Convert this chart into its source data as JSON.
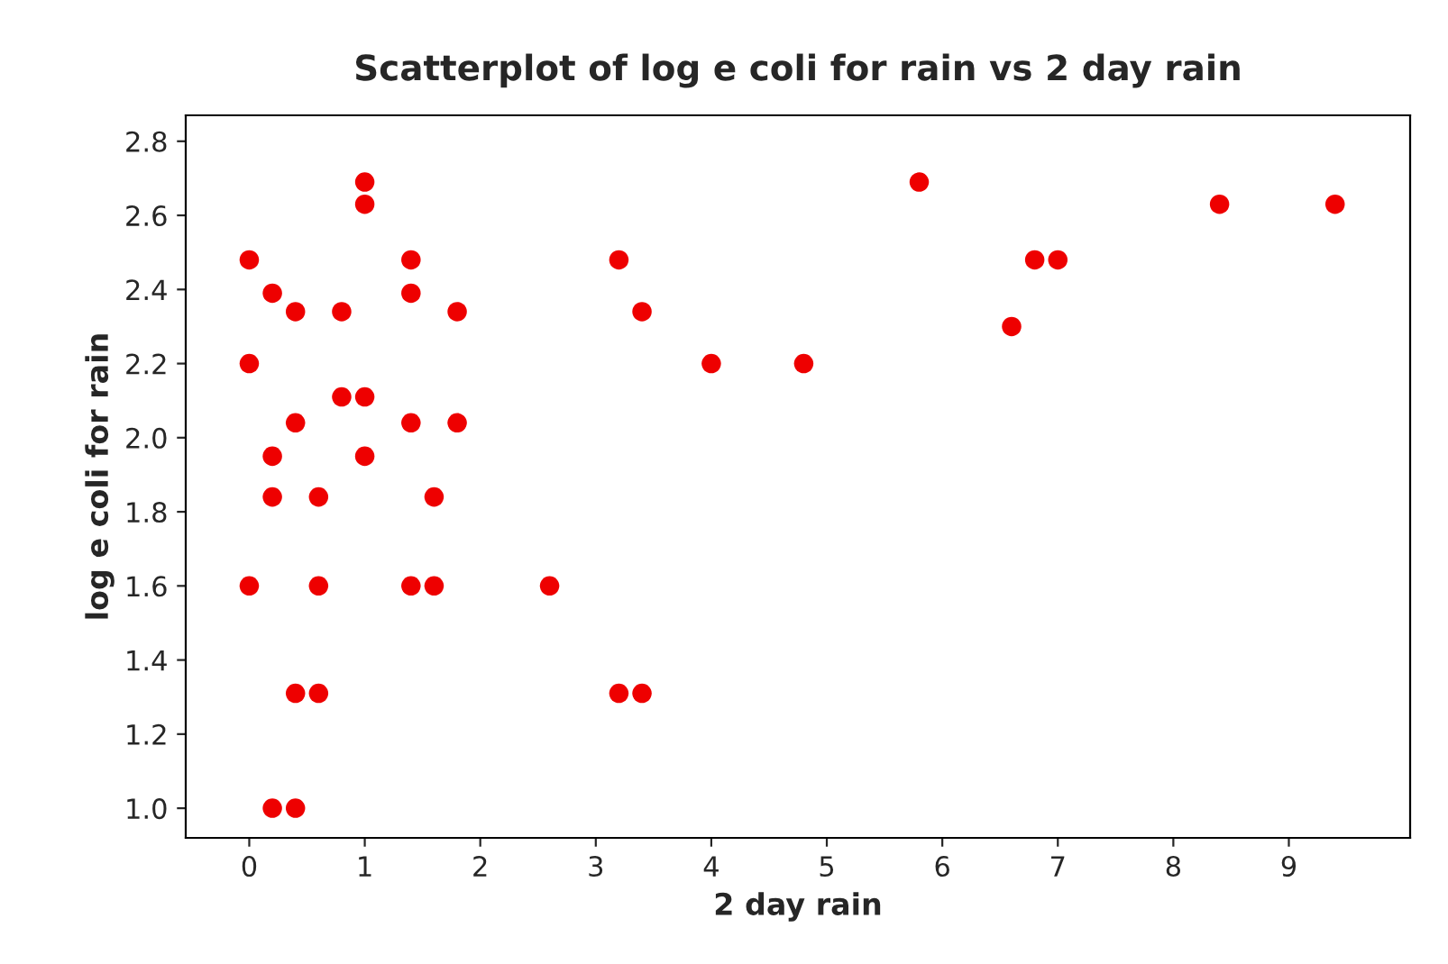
{
  "chart_data": {
    "type": "scatter",
    "title": "Scatterplot of log e coli for rain vs 2 day rain",
    "xlabel": "2 day rain",
    "ylabel": "log e coli for rain",
    "x": [
      0,
      0,
      0,
      0.2,
      0.2,
      0.2,
      0.2,
      0.4,
      0.4,
      0.4,
      0.4,
      0.6,
      0.6,
      0.6,
      0.8,
      0.8,
      1.0,
      1.0,
      1.0,
      1.0,
      1.4,
      1.4,
      1.4,
      1.4,
      1.6,
      1.6,
      1.8,
      1.8,
      2.6,
      3.2,
      3.2,
      3.4,
      3.4,
      4.0,
      4.8,
      5.8,
      6.6,
      6.8,
      7.0,
      8.4,
      9.4
    ],
    "values": [
      2.48,
      2.2,
      1.6,
      2.39,
      1.95,
      1.84,
      1.0,
      1.0,
      2.34,
      2.04,
      1.31,
      1.84,
      1.6,
      1.31,
      2.34,
      2.11,
      2.69,
      2.63,
      2.11,
      1.95,
      2.48,
      2.39,
      2.04,
      1.6,
      1.84,
      1.6,
      2.34,
      2.04,
      1.6,
      2.48,
      1.31,
      2.34,
      1.31,
      2.2,
      2.2,
      2.69,
      2.3,
      2.48,
      2.48,
      2.63,
      2.63
    ],
    "color": "#ee0000",
    "marker": "circle",
    "xlim": [
      -0.55,
      10.05
    ],
    "ylim": [
      0.92,
      2.87
    ],
    "xticks": [
      0,
      1,
      2,
      3,
      4,
      5,
      6,
      7,
      8,
      9
    ],
    "yticks": [
      {
        "value": 1.0,
        "label": "1.0"
      },
      {
        "value": 1.2,
        "label": "1.2"
      },
      {
        "value": 1.4,
        "label": "1.4"
      },
      {
        "value": 1.6,
        "label": "1.6"
      },
      {
        "value": 1.8,
        "label": "1.8"
      },
      {
        "value": 2.0,
        "label": "2.0"
      },
      {
        "value": 2.2,
        "label": "2.2"
      },
      {
        "value": 2.4,
        "label": "2.4"
      },
      {
        "value": 2.6,
        "label": "2.6"
      },
      {
        "value": 2.8,
        "label": "2.8"
      }
    ],
    "grid": false
  }
}
